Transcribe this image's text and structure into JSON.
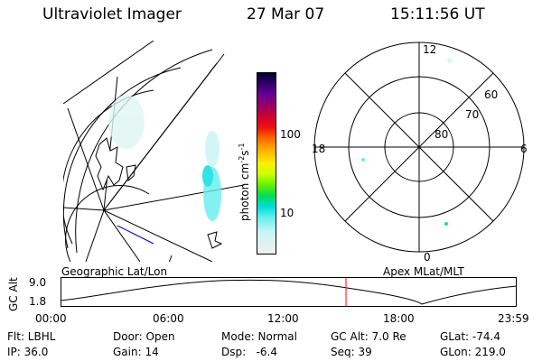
{
  "header": {
    "instrument": "Ultraviolet Imager",
    "date": "27 Mar 07",
    "time": "15:11:56 UT"
  },
  "colorbar": {
    "label": "photon cm",
    "label_sup1": "-2",
    "label_mid": "s",
    "label_sup2": "-1",
    "tick_100": "100",
    "tick_10": "10",
    "colors": [
      "#000033",
      "#330066",
      "#660099",
      "#990066",
      "#cc0033",
      "#ee1111",
      "#ff6600",
      "#ffaa00",
      "#ffee00",
      "#ccff00",
      "#66ee00",
      "#00dd55",
      "#00dddd",
      "#66eeee",
      "#c8f4f4",
      "#f0f0f0"
    ]
  },
  "polar_plot": {
    "mlt_top": "12",
    "mlt_left": "18",
    "mlt_right": "6",
    "mlt_bottom": "0",
    "lat_60": "60",
    "lat_70": "70",
    "lat_80": "80"
  },
  "labels": {
    "left_map": "Geographic Lat/Lon",
    "right_map": "Apex MLat/MLT"
  },
  "timeline": {
    "y_label": "GC Alt",
    "y_max": "9.0",
    "y_min": "1.8",
    "x_ticks": [
      "00:00",
      "06:00",
      "12:00",
      "18:00",
      "23:59"
    ],
    "current_time_color": "#ff0000"
  },
  "info": {
    "flt": "Flt: LBHL",
    "ip": "IP: 36.0",
    "door": "Door: Open",
    "gain": "Gain: 14",
    "mode": "Mode: Normal",
    "dsp": "Dsp:   -6.4",
    "gcalt": "GC Alt: 7.0 Re",
    "seq": "Seq: 39",
    "glat": "GLat: -74.4",
    "glon": "GLon: 219.0"
  }
}
